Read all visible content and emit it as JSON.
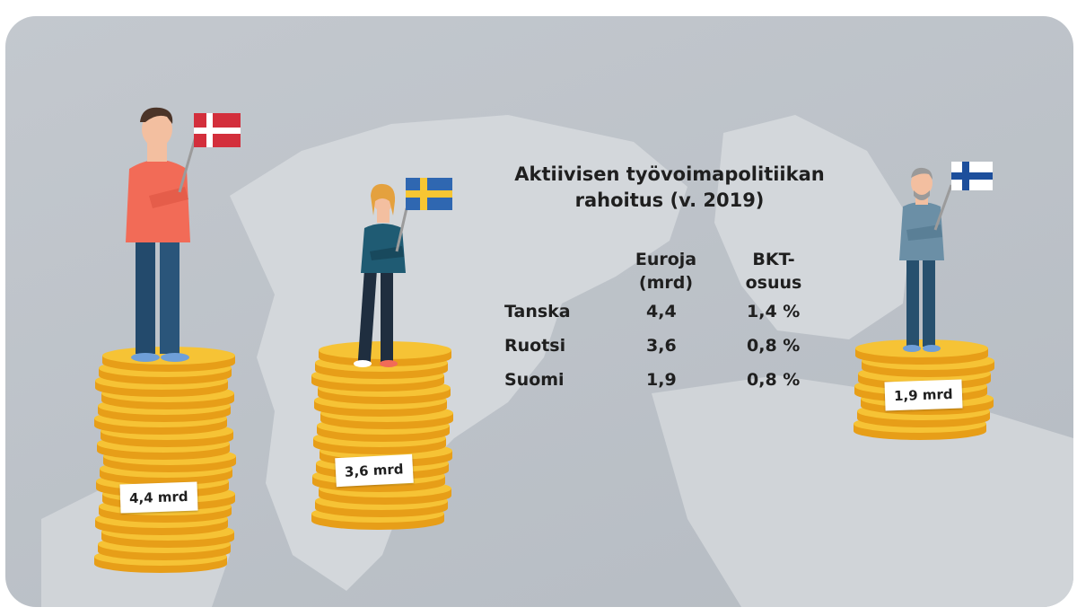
{
  "chart_data": {
    "type": "table",
    "title": "Aktiivisen työvoimapolitiikan rahoitus (v. 2019)",
    "columns": [
      "Euroja (mrd)",
      "BKT-osuus"
    ],
    "rows": [
      {
        "country": "Tanska",
        "euros": "4,4",
        "gdp_share": "1,4 %",
        "euros_value": 4.4,
        "gdp_value": 1.4,
        "label": "4,4 mrd"
      },
      {
        "country": "Ruotsi",
        "euros": "3,6",
        "gdp_share": "0,8 %",
        "euros_value": 3.6,
        "gdp_value": 0.8,
        "label": "3,6 mrd"
      },
      {
        "country": "Suomi",
        "euros": "1,9",
        "gdp_share": "0,8 %",
        "euros_value": 1.9,
        "gdp_value": 0.8,
        "label": "1,9 mrd"
      }
    ]
  },
  "header": {
    "title_line1": "Aktiivisen työvoimapolitiikan",
    "title_line2": "rahoitus (v. 2019)",
    "col1_line1": "Euroja",
    "col1_line2": "(mrd)",
    "col2_line1": "BKT-",
    "col2_line2": "osuus"
  },
  "colors": {
    "background": "#bcc1c7",
    "land": "#d6d9dd",
    "coin": "#f6c335",
    "coin_edge": "#e79e18",
    "denmark_flag": "#d32f3c",
    "sweden_flag_blue": "#2f67b1",
    "sweden_flag_yellow": "#f7c632",
    "finland_flag_blue": "#1d4f9c"
  }
}
